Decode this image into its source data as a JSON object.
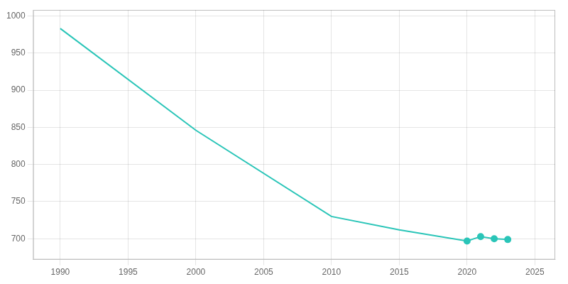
{
  "chart_data": {
    "type": "line",
    "x": [
      1990,
      2000,
      2010,
      2015,
      2020,
      2021,
      2022,
      2023
    ],
    "series": [
      {
        "color": "#2ac5b8",
        "values": [
          983,
          846,
          730,
          712,
          697,
          703,
          700,
          699
        ]
      },
      {
        "type": "scatter",
        "color": "#2ac5b8",
        "marker": "circle",
        "line_style": "none",
        "x": [
          2020,
          2021,
          2022,
          2023
        ],
        "values": [
          697,
          703,
          700,
          699
        ]
      }
    ],
    "xlim": [
      1988.0,
      2026.5
    ],
    "ylim": [
      672,
      1008
    ],
    "xticks": [
      1990,
      1995,
      2000,
      2005,
      2010,
      2015,
      2020,
      2025
    ],
    "yticks": [
      700,
      750,
      800,
      850,
      900,
      950,
      1000
    ],
    "grid": true
  }
}
